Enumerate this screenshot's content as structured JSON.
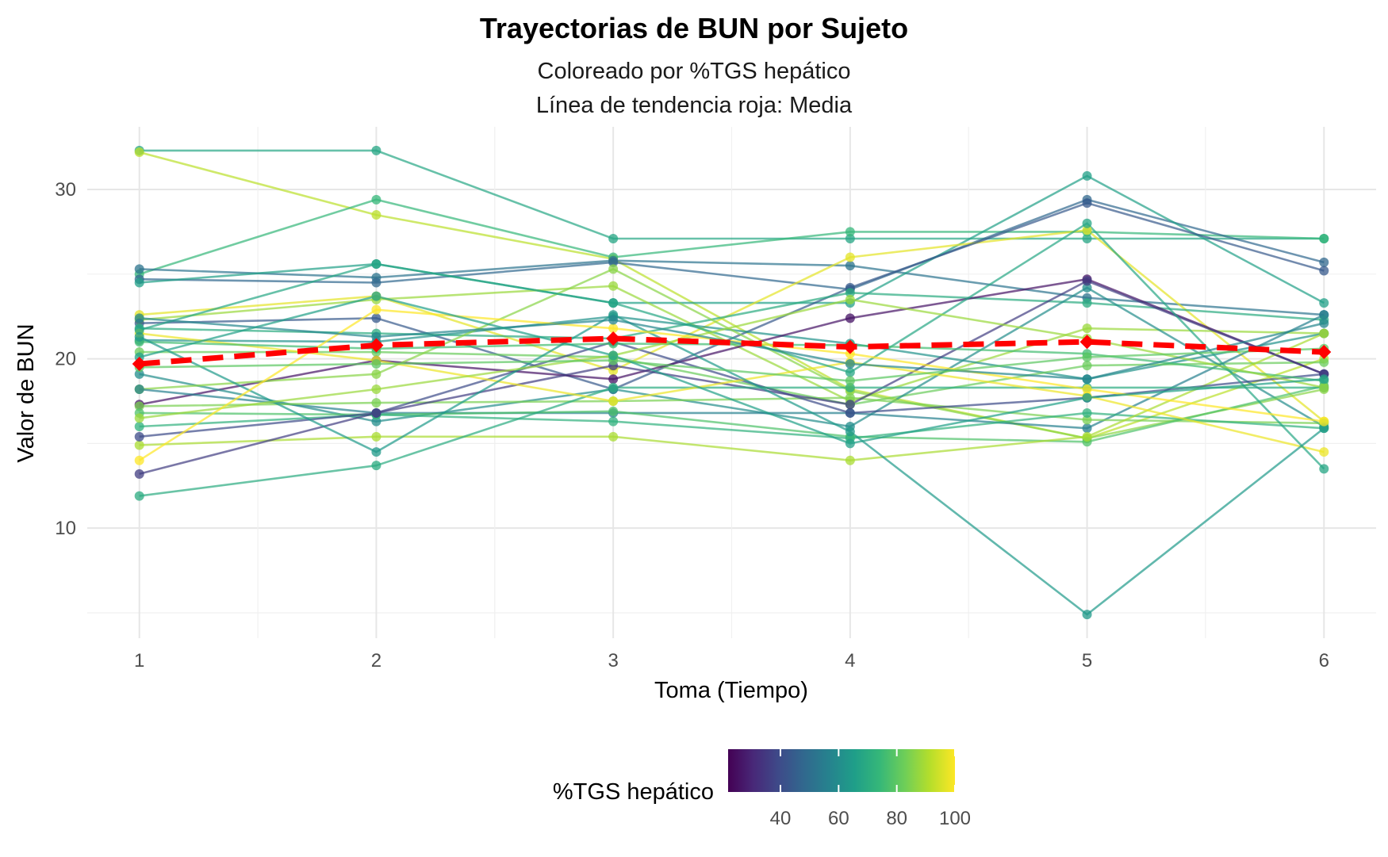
{
  "chart_data": {
    "type": "line",
    "title": "Trayectorias de BUN por Sujeto",
    "subtitle_lines": [
      "Coloreado por %TGS hepático",
      "Línea de tendencia roja: Media"
    ],
    "xlabel": "Toma (Tiempo)",
    "ylabel": "Valor de BUN",
    "x_ticks": [
      "1",
      "2",
      "3",
      "4",
      "5",
      "6"
    ],
    "y_ticks": [
      "10",
      "20",
      "30"
    ],
    "xlim": [
      0.78,
      6.22
    ],
    "ylim": [
      3.5,
      33.7
    ],
    "grid": true,
    "legend": {
      "title": "%TGS hepático",
      "position": "bottom",
      "range": [
        22,
        100
      ],
      "ticks": [
        "40",
        "60",
        "80",
        "100"
      ],
      "palette": [
        "#440154",
        "#482878",
        "#3e4a89",
        "#31688e",
        "#26828e",
        "#1f9e89",
        "#35b779",
        "#6ece58",
        "#b5de2b",
        "#fde725"
      ]
    },
    "mean_series": {
      "name": "Media",
      "color": "#ff0000",
      "x": [
        1,
        2,
        3,
        4,
        5,
        6
      ],
      "y": [
        19.7,
        20.8,
        21.2,
        20.7,
        21.0,
        20.4
      ]
    },
    "series": [
      {
        "tgs": 68,
        "y": [
          32.3,
          32.3,
          27.1,
          27.1,
          27.1,
          27.1
        ]
      },
      {
        "tgs": 92,
        "y": [
          32.2,
          28.5,
          25.9,
          18.2,
          15.3,
          20.0
        ]
      },
      {
        "tgs": 74,
        "y": [
          25.0,
          29.4,
          26.0,
          27.5,
          27.5,
          27.1
        ]
      },
      {
        "tgs": 52,
        "y": [
          25.3,
          24.8,
          25.8,
          25.5,
          23.6,
          22.6
        ]
      },
      {
        "tgs": 48,
        "y": [
          24.7,
          24.5,
          25.7,
          24.1,
          29.4,
          25.7
        ]
      },
      {
        "tgs": 66,
        "y": [
          24.5,
          25.6,
          23.3,
          23.3,
          30.8,
          23.3
        ]
      },
      {
        "tgs": 97,
        "y": [
          22.6,
          23.7,
          19.3,
          26.0,
          27.6,
          16.3
        ]
      },
      {
        "tgs": 88,
        "y": [
          22.3,
          23.5,
          24.3,
          17.5,
          21.8,
          21.5
        ]
      },
      {
        "tgs": 44,
        "y": [
          22.1,
          22.4,
          18.2,
          24.2,
          29.2,
          25.2
        ]
      },
      {
        "tgs": 70,
        "y": [
          21.8,
          21.5,
          21.2,
          23.9,
          23.3,
          22.3
        ]
      },
      {
        "tgs": 62,
        "y": [
          21.1,
          21.0,
          22.5,
          20.9,
          18.8,
          21.5
        ]
      },
      {
        "tgs": 82,
        "y": [
          20.4,
          20.4,
          20.1,
          17.3,
          19.6,
          19.8
        ]
      },
      {
        "tgs": 26,
        "y": [
          17.3,
          19.9,
          18.8,
          22.4,
          24.7,
          19.1
        ]
      },
      {
        "tgs": 60,
        "y": [
          19.1,
          16.3,
          18.2,
          16.0,
          24.2,
          16.0
        ]
      },
      {
        "tgs": 86,
        "y": [
          18.2,
          19.1,
          25.3,
          18.1,
          15.3,
          18.2
        ]
      },
      {
        "tgs": 56,
        "y": [
          18.2,
          16.8,
          16.8,
          16.8,
          15.9,
          22.6
        ]
      },
      {
        "tgs": 84,
        "y": [
          17.2,
          17.4,
          17.5,
          17.7,
          16.4,
          16.2
        ]
      },
      {
        "tgs": 78,
        "y": [
          16.8,
          16.7,
          16.9,
          15.4,
          15.1,
          18.4
        ]
      },
      {
        "tgs": 72,
        "y": [
          16.0,
          16.7,
          16.3,
          15.3,
          16.8,
          15.9
        ]
      },
      {
        "tgs": 90,
        "y": [
          14.9,
          15.4,
          15.4,
          14.0,
          15.4,
          21.5
        ]
      },
      {
        "tgs": 40,
        "y": [
          15.4,
          16.8,
          21.0,
          16.8,
          17.7,
          19.1
        ]
      },
      {
        "tgs": 36,
        "y": [
          13.2,
          16.8,
          19.6,
          17.3,
          24.6,
          19.1
        ]
      },
      {
        "tgs": 70,
        "y": [
          11.9,
          13.7,
          18.3,
          18.3,
          18.3,
          18.3
        ]
      },
      {
        "tgs": 98,
        "y": [
          21.5,
          19.9,
          17.5,
          19.8,
          17.8,
          14.5
        ]
      },
      {
        "tgs": 68,
        "y": [
          21.7,
          25.6,
          23.3,
          19.2,
          28.0,
          13.5
        ]
      },
      {
        "tgs": 76,
        "y": [
          21.0,
          20.6,
          20.9,
          20.8,
          20.3,
          18.7
        ]
      },
      {
        "tgs": 64,
        "y": [
          21.3,
          14.5,
          22.6,
          15.7,
          4.9,
          15.9
        ]
      },
      {
        "tgs": 88,
        "y": [
          16.5,
          18.2,
          20.2,
          23.5,
          21.2,
          18.3
        ]
      },
      {
        "tgs": 100,
        "y": [
          14.0,
          22.9,
          21.8,
          20.3,
          18.2,
          16.3
        ]
      },
      {
        "tgs": 58,
        "y": [
          22.4,
          21.3,
          22.3,
          19.7,
          18.8,
          22.1
        ]
      },
      {
        "tgs": 80,
        "y": [
          19.5,
          19.7,
          19.9,
          18.7,
          20.1,
          20.6
        ]
      },
      {
        "tgs": 66,
        "y": [
          20.1,
          23.7,
          20.2,
          15.0,
          17.7,
          18.8
        ]
      }
    ]
  }
}
